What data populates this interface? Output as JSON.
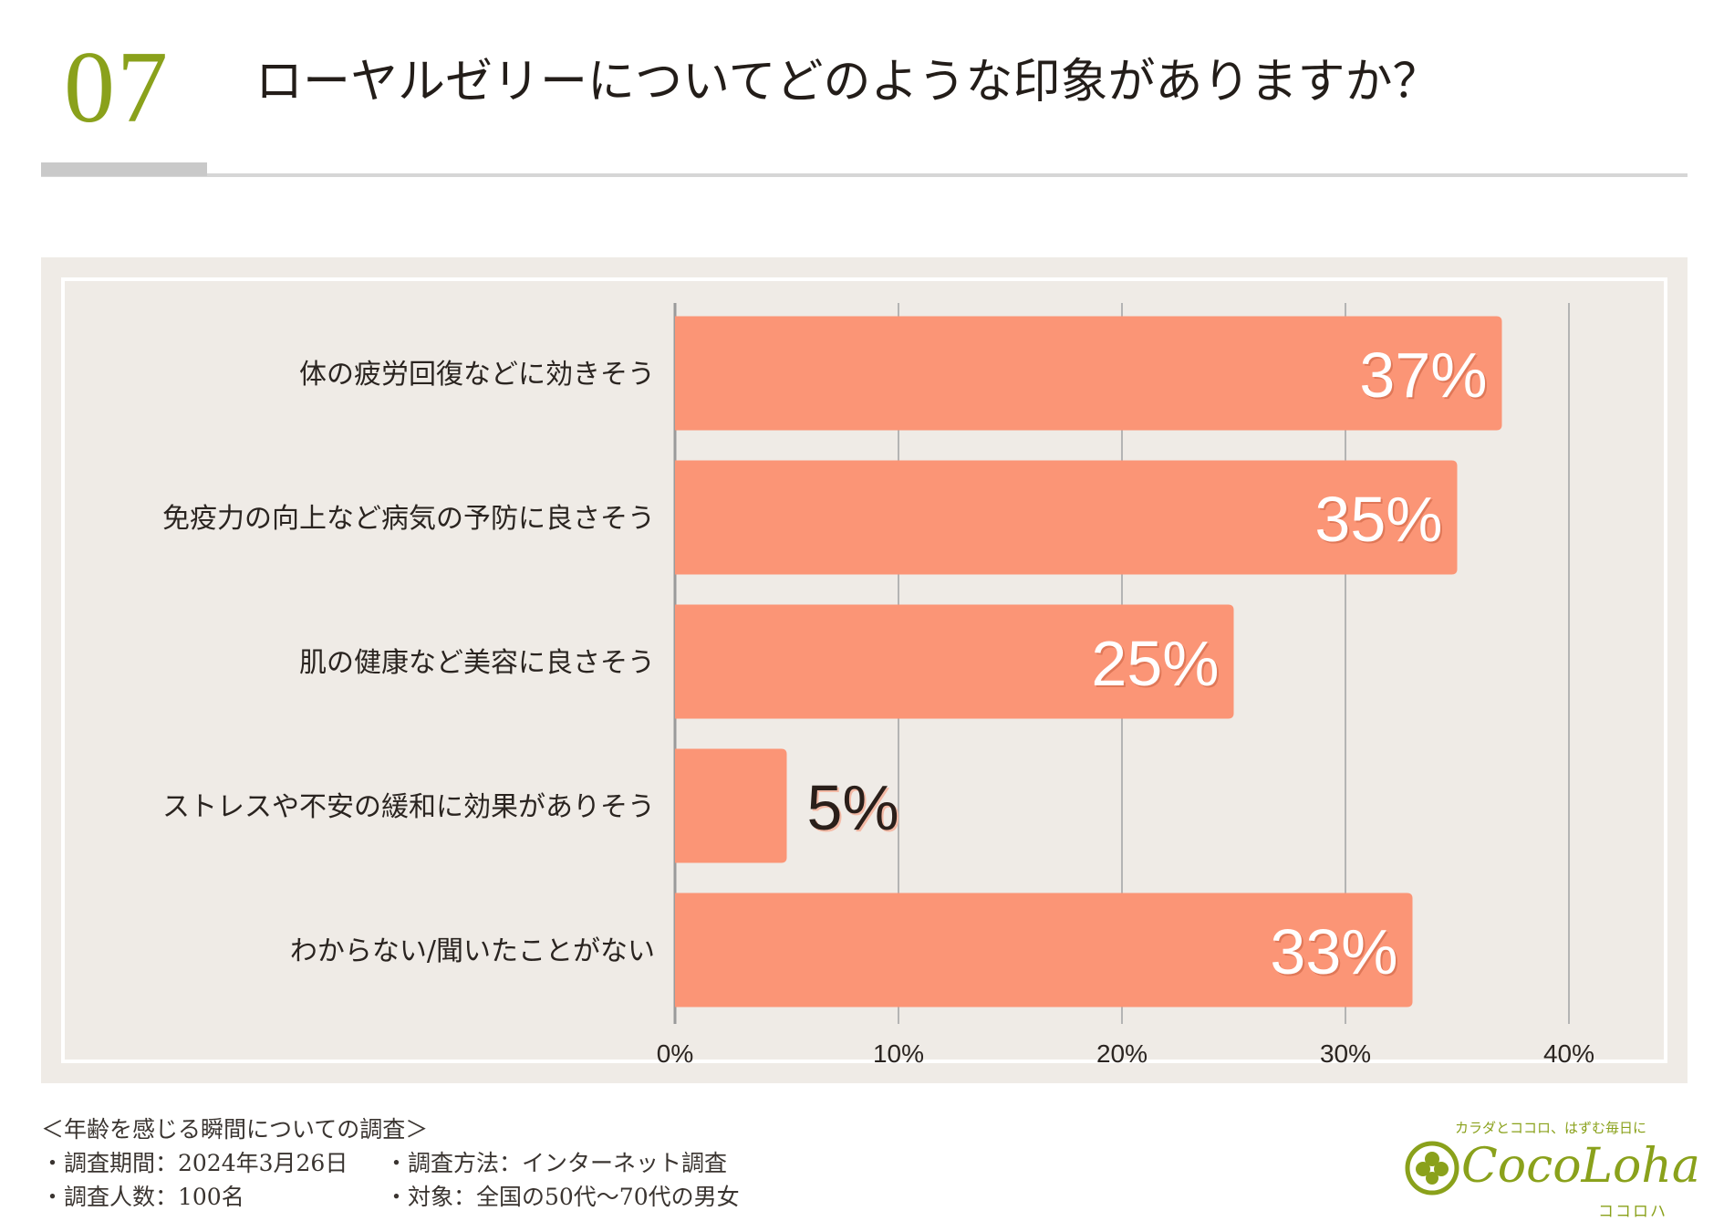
{
  "header": {
    "number": "07",
    "title": "ローヤルゼリーについてどのような印象がありますか？"
  },
  "chart_data": {
    "type": "bar",
    "orientation": "horizontal",
    "categories": [
      "体の疲労回復などに効きそう",
      "免疫力の向上など病気の予防に良さそう",
      "肌の健康など美容に良さそう",
      "ストレスや不安の緩和に効果がありそう",
      "わからない/聞いたことがない"
    ],
    "values": [
      37,
      35,
      25,
      5,
      33
    ],
    "value_labels": [
      "37%",
      "35%",
      "25%",
      "5%",
      "33%"
    ],
    "xlim": [
      0,
      40
    ],
    "x_ticks": [
      "0%",
      "10%",
      "20%",
      "30%",
      "40%"
    ],
    "grid": true,
    "bar_color": "#fb9576",
    "title": "",
    "xlabel": "",
    "ylabel": ""
  },
  "footer": {
    "survey_title": "＜年齢を感じる瞬間についての調査＞",
    "period": "・調査期間：2024年3月26日",
    "method": "・調査方法：インターネット調査",
    "count": "・調査人数：100名",
    "target": "・対象：全国の50代〜70代の男女"
  },
  "logo": {
    "tagline": "カラダとココロ、はずむ毎日に",
    "name": "CocoLoha",
    "kana": "ココロハ",
    "icon": "clover-icon"
  },
  "colors": {
    "accent": "#8aa11b",
    "panel_bg": "#efebe6"
  }
}
